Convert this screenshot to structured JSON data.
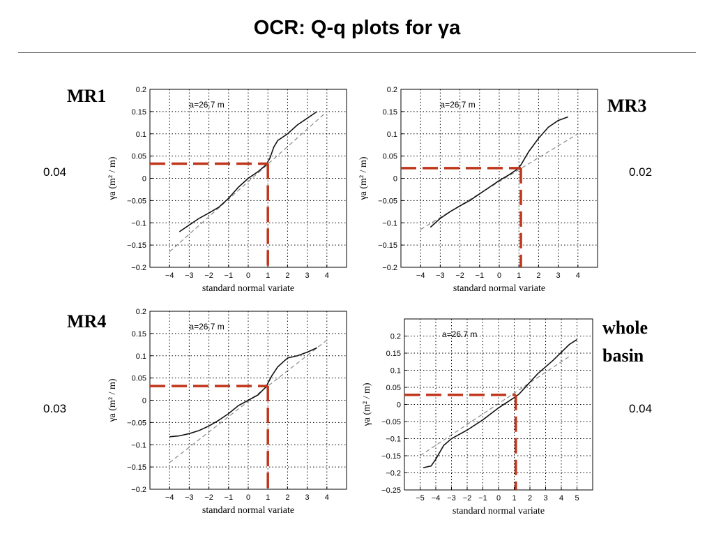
{
  "title": "OCR: Q-q plots for γa",
  "panel_labels": {
    "mr1": "MR1",
    "mr3": "MR3",
    "mr4": "MR4",
    "whole_line1": "whole",
    "whole_line2": "basin"
  },
  "thresholds": {
    "mr1": "0.04",
    "mr3": "0.02",
    "mr4": "0.03",
    "whole": "0.04"
  },
  "colors": {
    "highlight": "#c0361b",
    "curve": "#111111",
    "reference": "#888888"
  },
  "chart_data": [
    {
      "type": "line",
      "panel": "MR1",
      "annotation": "a=26.7 m",
      "xlabel": "standard normal variate",
      "ylabel": "γa (m² / m)",
      "xlim": [
        -5,
        5
      ],
      "ylim": [
        -0.2,
        0.2
      ],
      "xticks": [
        -4,
        -3,
        -2,
        -1,
        0,
        1,
        2,
        3,
        4
      ],
      "yticks": [
        -0.2,
        -0.15,
        -0.1,
        -0.05,
        0,
        0.05,
        0.1,
        0.15,
        0.2
      ],
      "grid": true,
      "series": [
        {
          "values": [
            [
              -3.5,
              -0.12
            ],
            [
              -3,
              -0.105
            ],
            [
              -2.5,
              -0.09
            ],
            [
              -2,
              -0.078
            ],
            [
              -1.5,
              -0.065
            ],
            [
              -1,
              -0.045
            ],
            [
              -0.5,
              -0.02
            ],
            [
              0,
              0
            ],
            [
              0.5,
              0.015
            ],
            [
              0.9,
              0.03
            ],
            [
              1.1,
              0.045
            ],
            [
              1.3,
              0.07
            ],
            [
              1.5,
              0.085
            ],
            [
              2,
              0.1
            ],
            [
              2.5,
              0.12
            ],
            [
              3,
              0.135
            ],
            [
              3.5,
              0.15
            ]
          ]
        },
        {
          "values": [
            [
              -4,
              -0.165
            ],
            [
              4,
              0.15
            ]
          ]
        }
      ],
      "highlight": {
        "x": 1,
        "y": 0.033
      }
    },
    {
      "type": "line",
      "panel": "MR3",
      "annotation": "a=26.7 m",
      "xlabel": "standard normal variate",
      "ylabel": "γa (m² / m)",
      "xlim": [
        -5,
        5
      ],
      "ylim": [
        -0.2,
        0.2
      ],
      "xticks": [
        -4,
        -3,
        -2,
        -1,
        0,
        1,
        2,
        3,
        4
      ],
      "yticks": [
        -0.2,
        -0.15,
        -0.1,
        -0.05,
        0,
        0.05,
        0.1,
        0.15,
        0.2
      ],
      "grid": true,
      "series": [
        {
          "values": [
            [
              -3.5,
              -0.11
            ],
            [
              -3,
              -0.09
            ],
            [
              -2.5,
              -0.075
            ],
            [
              -2,
              -0.062
            ],
            [
              -1.5,
              -0.05
            ],
            [
              -1,
              -0.035
            ],
            [
              -0.5,
              -0.02
            ],
            [
              0,
              -0.005
            ],
            [
              0.5,
              0.008
            ],
            [
              0.9,
              0.02
            ],
            [
              1.1,
              0.03
            ],
            [
              1.5,
              0.06
            ],
            [
              2,
              0.09
            ],
            [
              2.5,
              0.115
            ],
            [
              3,
              0.13
            ],
            [
              3.5,
              0.138
            ]
          ]
        },
        {
          "values": [
            [
              -4,
              -0.115
            ],
            [
              4,
              0.1
            ]
          ]
        }
      ],
      "highlight": {
        "x": 1.1,
        "y": 0.023
      }
    },
    {
      "type": "line",
      "panel": "MR4",
      "annotation": "a=26.7 m",
      "xlabel": "standard normal variate",
      "ylabel": "γa (m² / m)",
      "xlim": [
        -5,
        5
      ],
      "ylim": [
        -0.2,
        0.2
      ],
      "xticks": [
        -4,
        -3,
        -2,
        -1,
        0,
        1,
        2,
        3,
        4
      ],
      "yticks": [
        -0.2,
        -0.15,
        -0.1,
        -0.05,
        0,
        0.05,
        0.1,
        0.15,
        0.2
      ],
      "grid": true,
      "series": [
        {
          "values": [
            [
              -4,
              -0.082
            ],
            [
              -3.5,
              -0.08
            ],
            [
              -3,
              -0.075
            ],
            [
              -2.5,
              -0.068
            ],
            [
              -2,
              -0.058
            ],
            [
              -1.5,
              -0.045
            ],
            [
              -1,
              -0.03
            ],
            [
              -0.5,
              -0.012
            ],
            [
              0,
              0
            ],
            [
              0.5,
              0.012
            ],
            [
              0.9,
              0.03
            ],
            [
              1.2,
              0.055
            ],
            [
              1.5,
              0.075
            ],
            [
              2,
              0.095
            ],
            [
              2.5,
              0.1
            ],
            [
              3,
              0.108
            ],
            [
              3.5,
              0.118
            ]
          ]
        },
        {
          "values": [
            [
              -4,
              -0.14
            ],
            [
              4,
              0.135
            ]
          ]
        }
      ],
      "highlight": {
        "x": 1,
        "y": 0.032
      }
    },
    {
      "type": "line",
      "panel": "whole basin",
      "annotation": "a=26.7 m",
      "xlabel": "standard normal variate",
      "ylabel": "γa (m² / m)",
      "xlim": [
        -6,
        6
      ],
      "ylim": [
        -0.25,
        0.25
      ],
      "xticks": [
        -5,
        -4,
        -3,
        -2,
        -1,
        0,
        1,
        2,
        3,
        4,
        5
      ],
      "yticks": [
        -0.25,
        -0.2,
        -0.15,
        -0.1,
        -0.05,
        0,
        0.05,
        0.1,
        0.15,
        0.2
      ],
      "grid": true,
      "series": [
        {
          "values": [
            [
              -4.8,
              -0.185
            ],
            [
              -4.3,
              -0.18
            ],
            [
              -4,
              -0.16
            ],
            [
              -3.5,
              -0.12
            ],
            [
              -3,
              -0.1
            ],
            [
              -2,
              -0.075
            ],
            [
              -1,
              -0.045
            ],
            [
              0,
              -0.01
            ],
            [
              0.5,
              0.005
            ],
            [
              1,
              0.02
            ],
            [
              1.3,
              0.03
            ],
            [
              1.8,
              0.055
            ],
            [
              2.5,
              0.09
            ],
            [
              3.5,
              0.13
            ],
            [
              4.5,
              0.175
            ],
            [
              5,
              0.19
            ]
          ]
        },
        {
          "values": [
            [
              -5,
              -0.15
            ],
            [
              4.5,
              0.14
            ]
          ]
        }
      ],
      "highlight": {
        "x": 1.1,
        "y": 0.028
      }
    }
  ]
}
